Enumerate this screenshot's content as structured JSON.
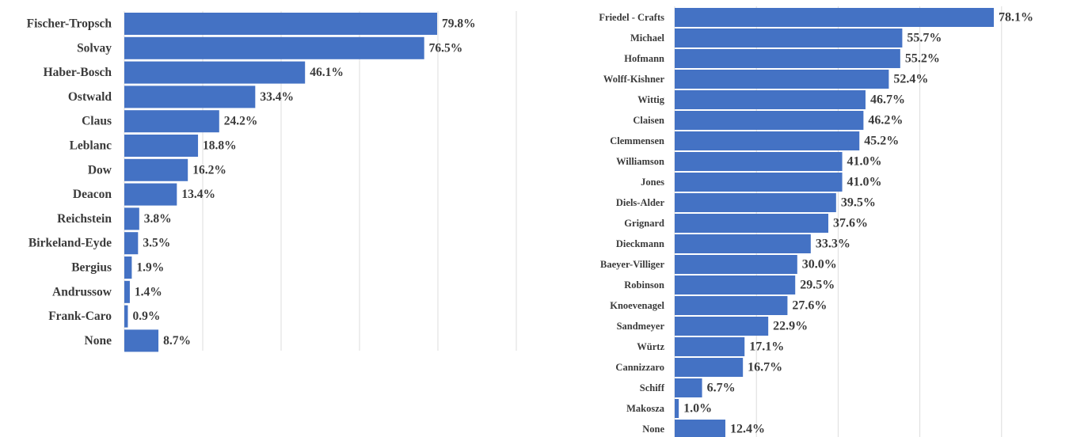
{
  "chart_data": [
    {
      "type": "bar",
      "orientation": "horizontal",
      "categories": [
        "Fischer-Tropsch",
        "Solvay",
        "Haber-Bosch",
        "Ostwald",
        "Claus",
        "Leblanc",
        "Dow",
        "Deacon",
        "Reichstein",
        "Birkeland-Eyde",
        "Bergius",
        "Andrussow",
        "Frank-Caro",
        "None"
      ],
      "values": [
        79.8,
        76.5,
        46.1,
        33.4,
        24.2,
        18.8,
        16.2,
        13.4,
        3.8,
        3.5,
        1.9,
        1.4,
        0.9,
        8.7
      ],
      "value_labels": [
        "79.8%",
        "76.5%",
        "46.1%",
        "33.4%",
        "24.2%",
        "18.8%",
        "16.2%",
        "13.4%",
        "3.8%",
        "3.5%",
        "1.9%",
        "1.4%",
        "0.9%",
        "8.7%"
      ],
      "xlim": [
        0,
        100
      ],
      "grid": true,
      "bar_color": "#4472c4",
      "title": "",
      "xlabel": "",
      "ylabel": ""
    },
    {
      "type": "bar",
      "orientation": "horizontal",
      "categories": [
        "Friedel - Crafts",
        "Michael",
        "Hofmann",
        "Wolff-Kishner",
        "Wittig",
        "Claisen",
        "Clemmensen",
        "Williamson",
        "Jones",
        "Diels-Alder",
        "Grignard",
        "Dieckmann",
        "Baeyer-Villiger",
        "Robinson",
        "Knoevenagel",
        "Sandmeyer",
        "Würtz",
        "Cannizzaro",
        "Schiff",
        "Makosza",
        "None"
      ],
      "values": [
        78.1,
        55.7,
        55.2,
        52.4,
        46.7,
        46.2,
        45.2,
        41.0,
        41.0,
        39.5,
        37.6,
        33.3,
        30.0,
        29.5,
        27.6,
        22.9,
        17.1,
        16.7,
        6.7,
        1.0,
        12.4
      ],
      "value_labels": [
        "78.1%",
        "55.7%",
        "55.2%",
        "52.4%",
        "46.7%",
        "46.2%",
        "45.2%",
        "41.0%",
        "41.0%",
        "39.5%",
        "37.6%",
        "33.3%",
        "30.0%",
        "29.5%",
        "27.6%",
        "22.9%",
        "17.1%",
        "16.7%",
        "6.7%",
        "1.0%",
        "12.4%"
      ],
      "xlim": [
        0,
        100
      ],
      "grid": true,
      "bar_color": "#4472c4",
      "title": "",
      "xlabel": "",
      "ylabel": ""
    }
  ]
}
